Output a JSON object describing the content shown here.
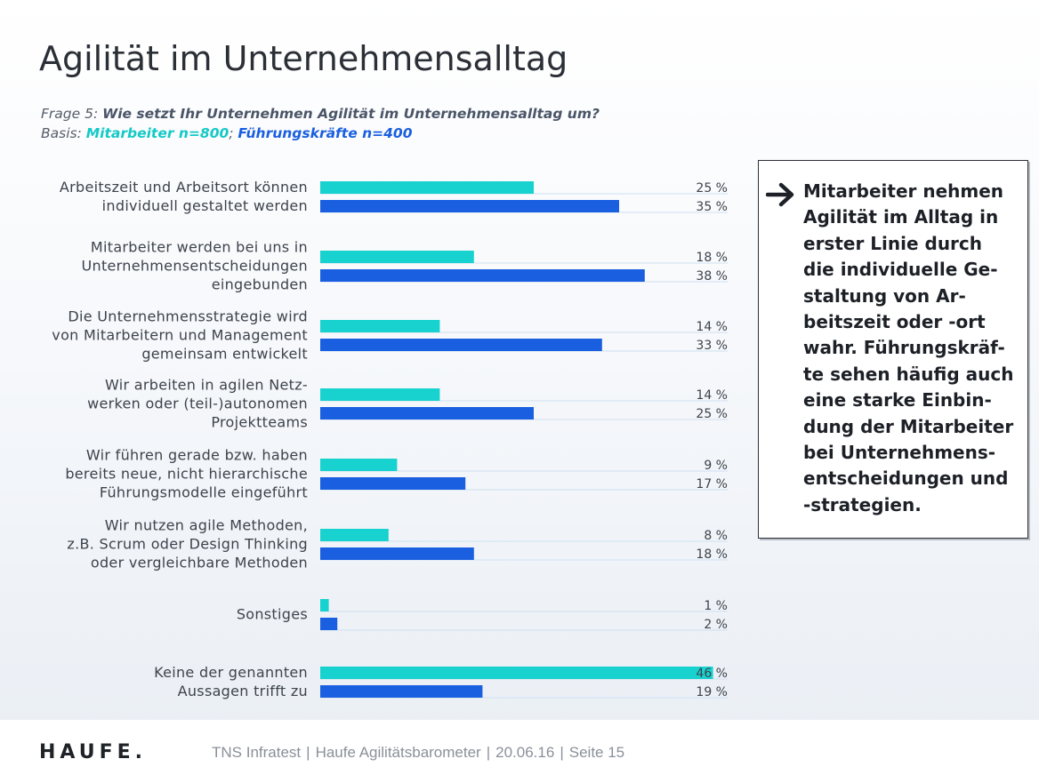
{
  "title": "Agilität im Unternehmensalltag",
  "subtitle": {
    "question_prefix": "Frage 5: ",
    "question_text": "Wie setzt Ihr Unternehmen Agilität im Unternehmensalltag um?",
    "basis_prefix": "Basis: ",
    "basis_mitarbeiter": "Mitarbeiter n=800",
    "basis_sep": "; ",
    "basis_fuehrung": "Führungskräfte n=400"
  },
  "colors": {
    "mitarbeiter": "#17d2ce",
    "fuehrung": "#1a5fe0",
    "guide": "#cfe0f2"
  },
  "chart_data": {
    "type": "bar",
    "orientation": "horizontal",
    "title": "",
    "xlim": [
      0,
      50
    ],
    "value_suffix": " %",
    "categories": [
      [
        "Arbeitszeit und Arbeitsort können",
        "individuell gestaltet werden"
      ],
      [
        "Mitarbeiter werden bei uns in",
        "Unternehmensentscheidungen",
        "eingebunden"
      ],
      [
        "Die Unternehmensstrategie wird",
        "von Mitarbeitern und Management",
        "gemeinsam entwickelt"
      ],
      [
        "Wir arbeiten in agilen Netz-",
        "werken oder (teil-)autonomen",
        "Projektteams"
      ],
      [
        "Wir führen gerade bzw. haben",
        "bereits neue, nicht hierarchische",
        "Führungsmodelle eingeführt"
      ],
      [
        "Wir nutzen agile Methoden,",
        "z.B. Scrum oder Design Thinking",
        "oder vergleichbare Methoden"
      ],
      [
        "Sonstiges"
      ],
      [
        "Keine der genannten",
        "Aussagen trifft zu"
      ]
    ],
    "series": [
      {
        "name": "Mitarbeiter",
        "values": [
          25,
          18,
          14,
          14,
          9,
          8,
          1,
          46
        ]
      },
      {
        "name": "Führungskräfte",
        "values": [
          35,
          38,
          33,
          25,
          17,
          18,
          2,
          19
        ]
      }
    ]
  },
  "callout": {
    "icon": "arrow-right-icon",
    "text": "Mitarbeiter nehmen\nAgilität im Alltag in\nerster Linie durch\ndie individuelle Ge-\nstaltung von Ar-\nbeitszeit oder -ort\nwahr. Führungskräf-\nte sehen häufig auch\neine starke Einbin-\ndung der Mitarbeiter\nbei Unternehmens-\nentscheidungen und\n-strategien."
  },
  "footer": {
    "logo_text": "HAUFE.",
    "source": "TNS Infratest",
    "study": "Haufe Agilitätsbarometer",
    "date": "20.06.16",
    "page": "Seite 15",
    "separator": "|"
  }
}
